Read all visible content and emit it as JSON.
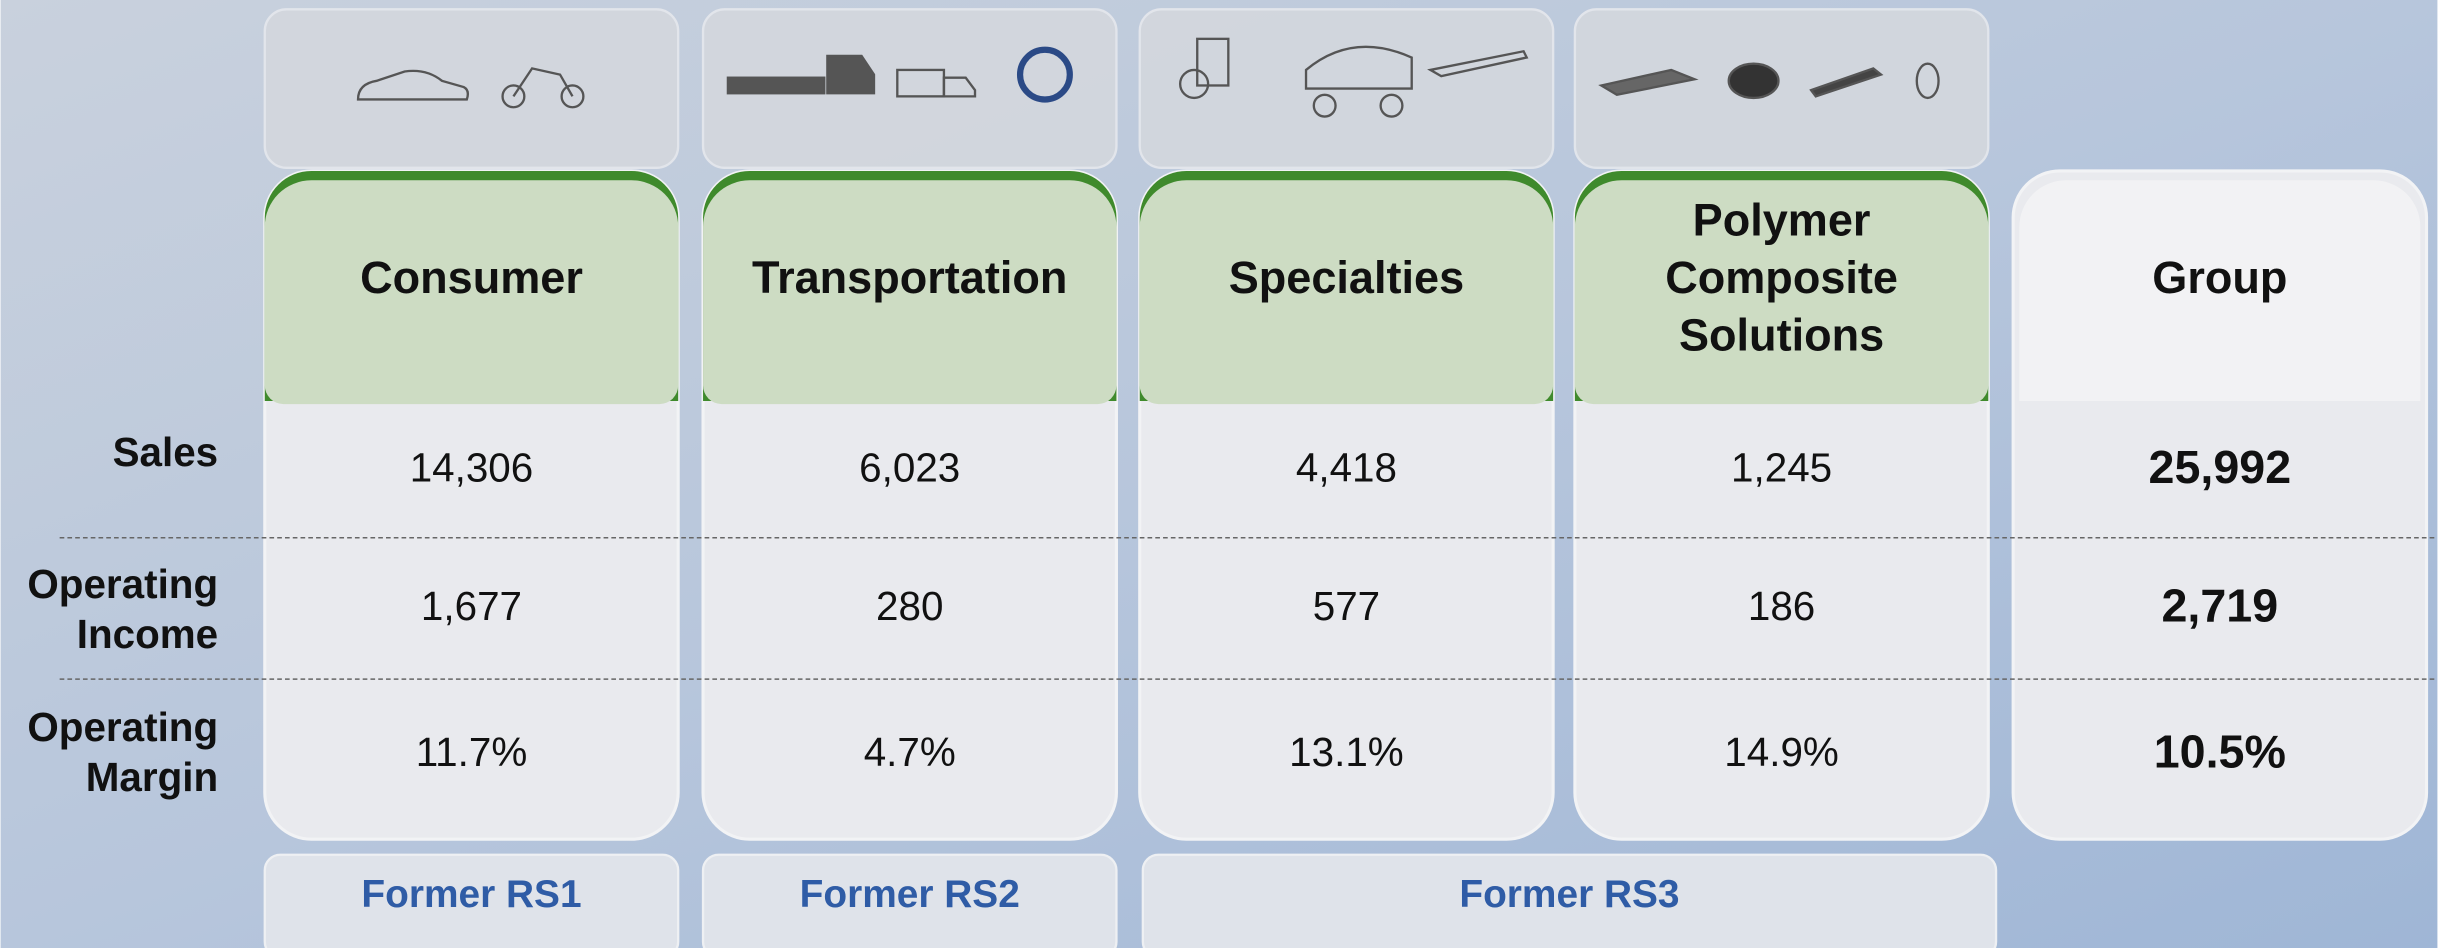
{
  "row_labels": [
    [
      "Sales"
    ],
    [
      "Operating",
      "Income"
    ],
    [
      "Operating",
      "Margin"
    ]
  ],
  "columns": [
    {
      "header": [
        "Consumer"
      ],
      "values": [
        "14,306",
        "1,677",
        "11.7%"
      ]
    },
    {
      "header": [
        "Transportation"
      ],
      "values": [
        "6,023",
        "280",
        "4.7%"
      ]
    },
    {
      "header": [
        "Specialties"
      ],
      "values": [
        "4,418",
        "577",
        "13.1%"
      ]
    },
    {
      "header": [
        "Polymer",
        "Composite",
        "Solutions"
      ],
      "values": [
        "1,245",
        "186",
        "14.9%"
      ]
    },
    {
      "header": [
        "Group"
      ],
      "values": [
        "25,992",
        "2,719",
        "10.5%"
      ]
    }
  ],
  "groups": [
    "Former RS1",
    "Former RS2",
    "Former RS3"
  ]
}
